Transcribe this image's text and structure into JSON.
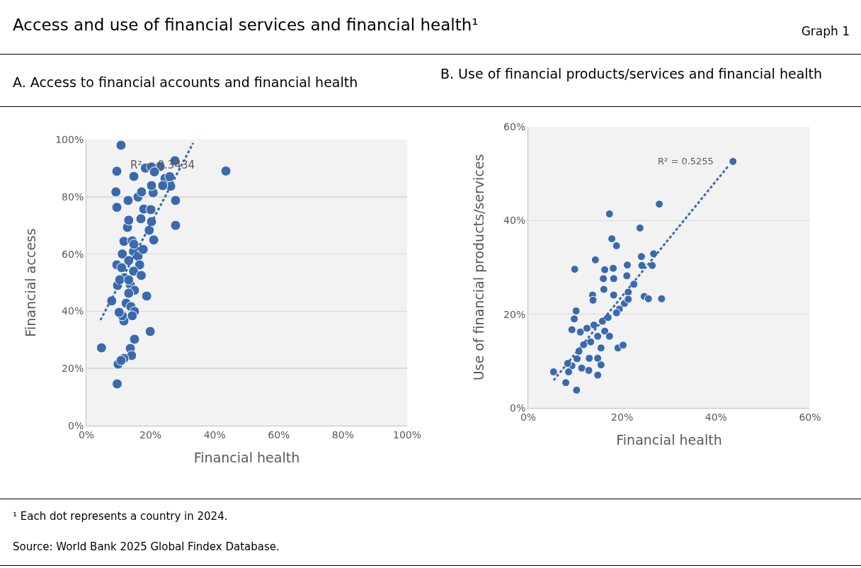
{
  "chart_data": [
    {
      "type": "scatter",
      "title": "Access and use of financial services and financial health¹",
      "subtitle": "A. Access to financial accounts and financial health",
      "xlabel": "Financial health",
      "ylabel": "Financial access",
      "xlim": [
        0,
        100
      ],
      "xticks": [
        {
          "value": 0,
          "label": "0%"
        },
        {
          "value": 20,
          "label": "20%"
        },
        {
          "value": 40,
          "label": "40%"
        },
        {
          "value": 60,
          "label": "60%"
        },
        {
          "value": 80,
          "label": "80%"
        },
        {
          "value": 100,
          "label": "100%"
        }
      ],
      "ylim": [
        0,
        100
      ],
      "yticks": [
        {
          "value": 0,
          "label": "0%"
        },
        {
          "value": 20,
          "label": "20%"
        },
        {
          "value": 40,
          "label": "40%"
        },
        {
          "value": 60,
          "label": "60%"
        },
        {
          "value": 80,
          "label": "80%"
        },
        {
          "value": 100,
          "label": "100%"
        }
      ],
      "grid": "y",
      "marker": "circle",
      "annotations": [
        "Graph 1",
        "¹ Each dot represents a country in 2024.",
        "Source: World Bank 2025 Global Findex Database.",
        "R² = 0.3434"
      ],
      "series": [
        {
          "color": "#3a6aad",
          "x": [
            10.8,
            43.5,
            9.5,
            14.8,
            9.2,
            9.5,
            13,
            4.7,
            9.9,
            9.6,
            19.9,
            18.8,
            15,
            13.7,
            14.1,
            11.7,
            10.8,
            7.9,
            9.7,
            9.5,
            11.2,
            11.7,
            12.8,
            13.2,
            17,
            17.9,
            16.1,
            17.2,
            20.1,
            19.6,
            21,
            20.3,
            20.8,
            20.3,
            23,
            27.6,
            26.3,
            27.8,
            27.8,
            18.4,
            20.3,
            21.2,
            24.5,
            23.8,
            26,
            14.3,
            14.7,
            16.1,
            13.2,
            16.6,
            14.7,
            11.9,
            17.1,
            13.7,
            15,
            13.2,
            12.4,
            13.9,
            15,
            14.3,
            11.7,
            11.2,
            10.2,
            17.7,
            14.8,
            11,
            10.4,
            13.2
          ],
          "values": [
            98,
            89,
            88.9,
            87.1,
            81.7,
            76.3,
            78.7,
            27.2,
            21.5,
            14.6,
            32.9,
            45.3,
            30.2,
            27,
            24.5,
            23.5,
            22.8,
            43.6,
            49,
            56.2,
            60,
            64.4,
            69.3,
            71.8,
            72.3,
            75.7,
            79.9,
            81.7,
            75.5,
            68.3,
            64.9,
            71.3,
            81.4,
            83.9,
            90.6,
            92.6,
            83.7,
            78.7,
            70,
            90,
            90.4,
            88.7,
            86.4,
            83.9,
            87,
            64.6,
            60.9,
            59.2,
            57.7,
            56.2,
            54,
            51.7,
            52.5,
            49.3,
            47.3,
            46.3,
            42.8,
            41.6,
            39.9,
            38.4,
            36.6,
            38.4,
            39.6,
            61.6,
            63.4,
            55.2,
            51,
            50.9
          ]
        },
        {
          "type": "line",
          "marker": "none",
          "color": "#3a6aad",
          "line_style": "dotted",
          "x": [
            4.4,
            33.3
          ],
          "values": [
            36.9,
            98.8
          ]
        }
      ]
    },
    {
      "type": "scatter",
      "subtitle": "B. Use of financial products/services and financial health",
      "xlabel": "Financial health",
      "ylabel": "Use of financial products/services",
      "xlim": [
        0,
        60
      ],
      "xticks": [
        {
          "value": 0,
          "label": "0%"
        },
        {
          "value": 20,
          "label": "20%"
        },
        {
          "value": 40,
          "label": "40%"
        },
        {
          "value": 60,
          "label": "60%"
        }
      ],
      "ylim": [
        0,
        60
      ],
      "yticks": [
        {
          "value": 0,
          "label": "0%"
        },
        {
          "value": 20,
          "label": "20%"
        },
        {
          "value": 40,
          "label": "40%"
        },
        {
          "value": 60,
          "label": "60%"
        }
      ],
      "grid": "y",
      "marker": "circle",
      "annotations": [
        "R² = 0.5255"
      ],
      "series": [
        {
          "color": "#3a6aad",
          "x": [
            43.6,
            27.9,
            17.3,
            23.8,
            17.8,
            18.8,
            14.3,
            9.9,
            24.1,
            26.7,
            26.4,
            24.2,
            21.1,
            16.3,
            18.1,
            16,
            18.2,
            21,
            22.5,
            21.3,
            16.1,
            13.7,
            13.8,
            18.2,
            24.7,
            25.6,
            28.4,
            20.5,
            21.3,
            19.4,
            18.8,
            10.2,
            9.8,
            9.3,
            11.1,
            12.5,
            14,
            15.8,
            17,
            16.3,
            17.3,
            14.8,
            13.3,
            15.5,
            11.8,
            10.8,
            13,
            14.8,
            10.4,
            19.1,
            20.2,
            9.3,
            8.6,
            11.4,
            12.9,
            15.5,
            14.8,
            8,
            10.3,
            5.4,
            8.4
          ],
          "values": [
            52.6,
            43.5,
            41.4,
            38.4,
            36.1,
            34.6,
            31.6,
            29.6,
            32.3,
            32.9,
            30.4,
            30.4,
            30.5,
            29.5,
            29.8,
            27.6,
            27.6,
            28.2,
            26.4,
            24.7,
            25.3,
            24.1,
            23,
            24.1,
            23.8,
            23.3,
            23.3,
            22.3,
            23.2,
            21.1,
            20.3,
            20.7,
            19,
            16.7,
            16.2,
            17,
            17.7,
            18.5,
            19.3,
            16.4,
            15.3,
            15.3,
            14.1,
            12.8,
            13.5,
            12.1,
            10.6,
            10.6,
            10.5,
            12.8,
            13.4,
            9,
            7.7,
            8.5,
            8,
            9.2,
            7,
            5.4,
            3.8,
            7.7,
            9.5
          ]
        },
        {
          "type": "line",
          "marker": "none",
          "color": "#3a6aad",
          "line_style": "dotted",
          "x": [
            5.4,
            42.5
          ],
          "values": [
            5.9,
            51.5
          ]
        }
      ]
    }
  ]
}
